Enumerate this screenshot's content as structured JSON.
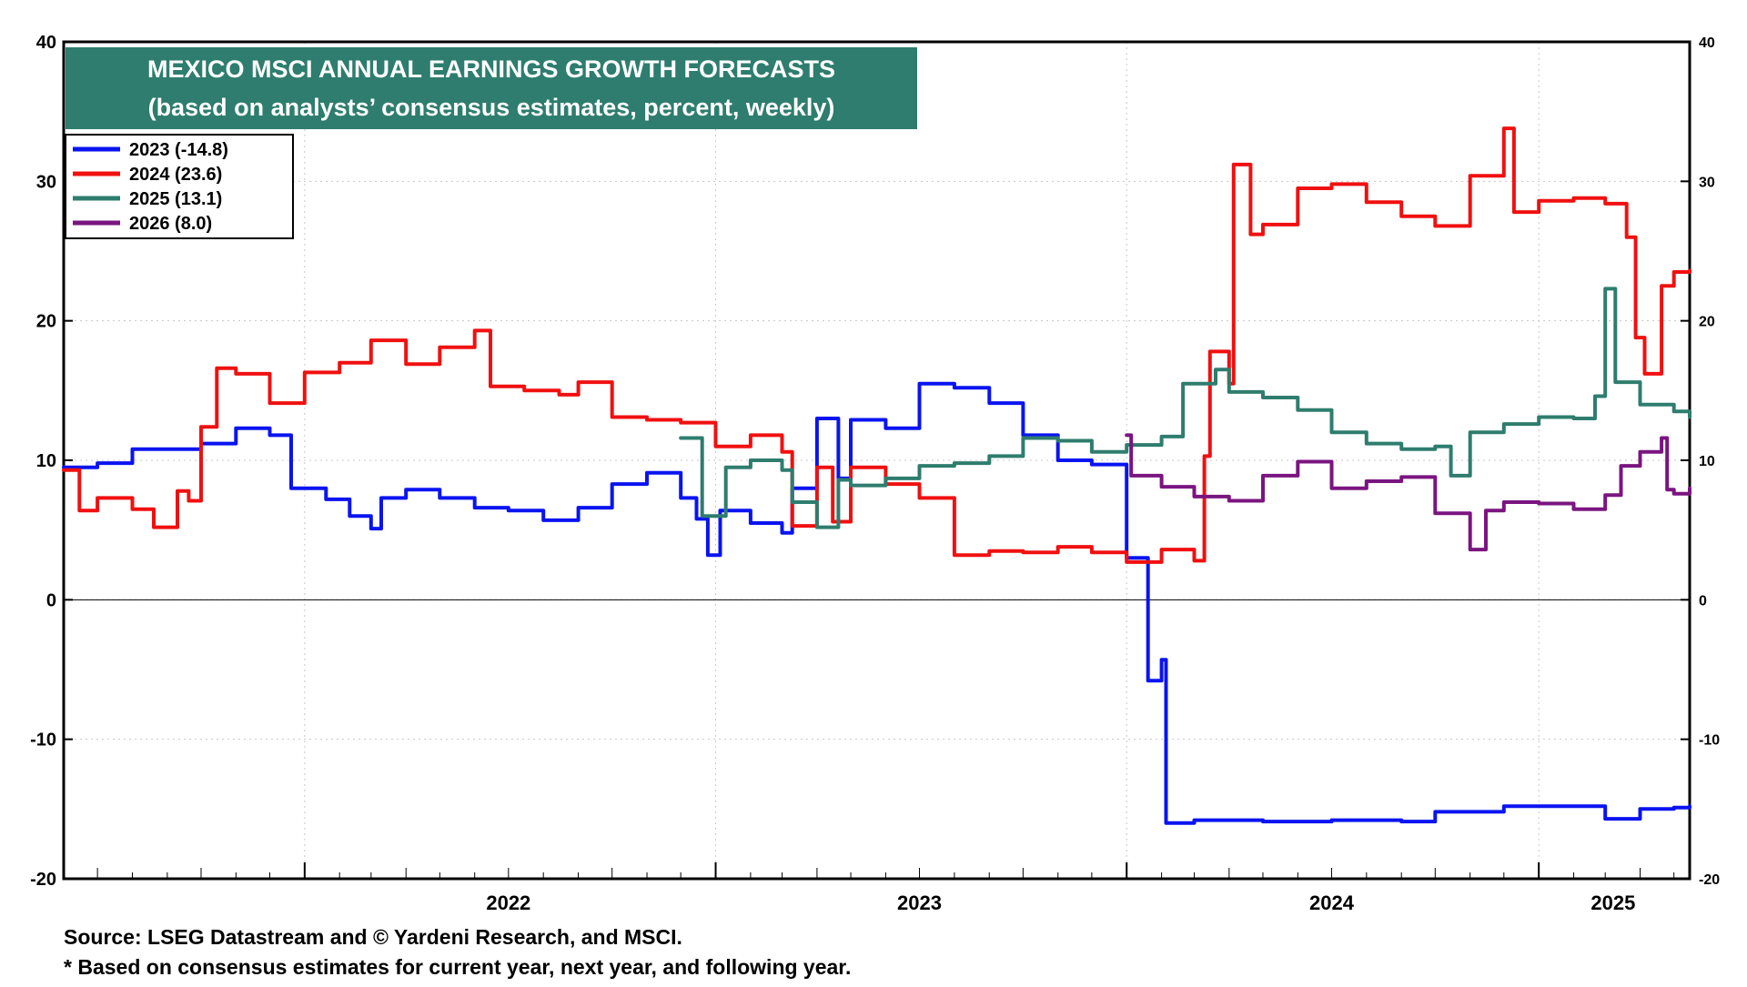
{
  "chart_data": {
    "type": "line",
    "title": "MEXICO MSCI ANNUAL EARNINGS GROWTH FORECASTS",
    "subtitle": "(based on analysts’ consensus estimates, percent, weekly)",
    "title_box_color": "#2e7d6e",
    "ylim": [
      -20,
      40
    ],
    "y_ticks": [
      -20,
      -10,
      0,
      10,
      20,
      30,
      40
    ],
    "y_tick_labels": [
      "-20",
      "-10",
      "0",
      "10",
      "20",
      "30",
      "40"
    ],
    "xlim": [
      "2021-06-01",
      "2025-05-15"
    ],
    "x_tick_labels": [
      "2022",
      "2023",
      "2024",
      "2025"
    ],
    "legend_position": "top-left",
    "grid": true,
    "series": [
      {
        "name": "2023 (-14.8)",
        "color": "#0a14f0",
        "points": [
          [
            "2021-06-01",
            9.5
          ],
          [
            "2021-07-01",
            9.8
          ],
          [
            "2021-08-01",
            10.8
          ],
          [
            "2021-09-01",
            10.8
          ],
          [
            "2021-10-01",
            11.2
          ],
          [
            "2021-11-01",
            12.3
          ],
          [
            "2021-12-01",
            11.8
          ],
          [
            "2021-12-20",
            8.0
          ],
          [
            "2022-01-20",
            7.2
          ],
          [
            "2022-02-10",
            6.0
          ],
          [
            "2022-03-01",
            5.1
          ],
          [
            "2022-03-10",
            7.3
          ],
          [
            "2022-04-01",
            7.9
          ],
          [
            "2022-05-01",
            7.3
          ],
          [
            "2022-06-01",
            6.6
          ],
          [
            "2022-07-01",
            6.4
          ],
          [
            "2022-08-01",
            5.7
          ],
          [
            "2022-09-01",
            6.6
          ],
          [
            "2022-10-01",
            8.3
          ],
          [
            "2022-11-01",
            9.1
          ],
          [
            "2022-12-01",
            7.3
          ],
          [
            "2022-12-15",
            5.8
          ],
          [
            "2022-12-25",
            3.2
          ],
          [
            "2023-01-05",
            6.4
          ],
          [
            "2023-02-01",
            5.5
          ],
          [
            "2023-03-01",
            4.8
          ],
          [
            "2023-03-10",
            8.0
          ],
          [
            "2023-04-01",
            13.0
          ],
          [
            "2023-04-20",
            8.7
          ],
          [
            "2023-05-01",
            12.9
          ],
          [
            "2023-06-01",
            12.3
          ],
          [
            "2023-07-01",
            15.5
          ],
          [
            "2023-08-01",
            15.2
          ],
          [
            "2023-09-01",
            14.1
          ],
          [
            "2023-10-01",
            11.8
          ],
          [
            "2023-11-01",
            10.0
          ],
          [
            "2023-12-01",
            9.7
          ],
          [
            "2024-01-01",
            3.0
          ],
          [
            "2024-01-20",
            -5.8
          ],
          [
            "2024-02-01",
            -4.3
          ],
          [
            "2024-02-05",
            -16.0
          ],
          [
            "2024-03-01",
            -15.8
          ],
          [
            "2024-05-01",
            -15.9
          ],
          [
            "2024-07-01",
            -15.8
          ],
          [
            "2024-09-01",
            -15.9
          ],
          [
            "2024-10-01",
            -15.2
          ],
          [
            "2024-12-01",
            -14.8
          ],
          [
            "2025-03-01",
            -15.7
          ],
          [
            "2025-04-01",
            -15.0
          ],
          [
            "2025-05-01",
            -14.9
          ],
          [
            "2025-05-15",
            -14.8
          ]
        ]
      },
      {
        "name": "2024 (23.6)",
        "color": "#f01010",
        "points": [
          [
            "2021-06-01",
            9.3
          ],
          [
            "2021-06-15",
            6.4
          ],
          [
            "2021-07-01",
            7.3
          ],
          [
            "2021-08-01",
            6.5
          ],
          [
            "2021-08-20",
            5.2
          ],
          [
            "2021-09-10",
            7.8
          ],
          [
            "2021-09-20",
            7.1
          ],
          [
            "2021-10-01",
            12.4
          ],
          [
            "2021-10-15",
            16.6
          ],
          [
            "2021-11-01",
            16.2
          ],
          [
            "2021-12-01",
            14.1
          ],
          [
            "2022-01-01",
            16.3
          ],
          [
            "2022-02-01",
            17.0
          ],
          [
            "2022-03-01",
            18.6
          ],
          [
            "2022-04-01",
            16.9
          ],
          [
            "2022-05-01",
            18.1
          ],
          [
            "2022-06-01",
            19.3
          ],
          [
            "2022-06-15",
            15.3
          ],
          [
            "2022-07-15",
            15.0
          ],
          [
            "2022-08-15",
            14.7
          ],
          [
            "2022-09-01",
            15.6
          ],
          [
            "2022-10-01",
            13.1
          ],
          [
            "2022-11-01",
            12.9
          ],
          [
            "2022-12-01",
            12.7
          ],
          [
            "2023-01-01",
            11.0
          ],
          [
            "2023-02-01",
            11.8
          ],
          [
            "2023-03-01",
            10.6
          ],
          [
            "2023-03-10",
            5.3
          ],
          [
            "2023-04-01",
            9.5
          ],
          [
            "2023-04-15",
            5.6
          ],
          [
            "2023-05-01",
            9.5
          ],
          [
            "2023-06-01",
            8.3
          ],
          [
            "2023-07-01",
            7.3
          ],
          [
            "2023-08-01",
            3.2
          ],
          [
            "2023-09-01",
            3.5
          ],
          [
            "2023-10-01",
            3.4
          ],
          [
            "2023-11-01",
            3.8
          ],
          [
            "2023-12-01",
            3.4
          ],
          [
            "2024-01-01",
            2.7
          ],
          [
            "2024-02-01",
            3.6
          ],
          [
            "2024-03-01",
            2.8
          ],
          [
            "2024-03-10",
            10.3
          ],
          [
            "2024-03-15",
            17.8
          ],
          [
            "2024-04-01",
            15.5
          ],
          [
            "2024-04-05",
            31.2
          ],
          [
            "2024-04-20",
            26.2
          ],
          [
            "2024-05-01",
            26.9
          ],
          [
            "2024-06-01",
            29.5
          ],
          [
            "2024-07-01",
            29.8
          ],
          [
            "2024-08-01",
            28.5
          ],
          [
            "2024-09-01",
            27.5
          ],
          [
            "2024-10-01",
            26.8
          ],
          [
            "2024-11-01",
            30.4
          ],
          [
            "2024-12-01",
            33.8
          ],
          [
            "2024-12-10",
            27.8
          ],
          [
            "2025-01-01",
            28.6
          ],
          [
            "2025-02-01",
            28.8
          ],
          [
            "2025-03-01",
            28.4
          ],
          [
            "2025-03-20",
            26.0
          ],
          [
            "2025-03-28",
            18.8
          ],
          [
            "2025-04-05",
            16.2
          ],
          [
            "2025-04-20",
            22.5
          ],
          [
            "2025-05-01",
            23.5
          ],
          [
            "2025-05-15",
            23.6
          ]
        ]
      },
      {
        "name": "2025 (13.1)",
        "color": "#2e7d6e",
        "points": [
          [
            "2022-12-01",
            11.6
          ],
          [
            "2022-12-20",
            6.0
          ],
          [
            "2023-01-10",
            9.5
          ],
          [
            "2023-02-01",
            10.0
          ],
          [
            "2023-03-01",
            9.3
          ],
          [
            "2023-03-10",
            7.0
          ],
          [
            "2023-04-01",
            5.2
          ],
          [
            "2023-04-20",
            8.6
          ],
          [
            "2023-05-01",
            8.2
          ],
          [
            "2023-06-01",
            8.7
          ],
          [
            "2023-07-01",
            9.6
          ],
          [
            "2023-08-01",
            9.8
          ],
          [
            "2023-09-01",
            10.3
          ],
          [
            "2023-10-01",
            11.6
          ],
          [
            "2023-11-01",
            11.4
          ],
          [
            "2023-12-01",
            10.6
          ],
          [
            "2024-01-01",
            11.1
          ],
          [
            "2024-02-01",
            11.7
          ],
          [
            "2024-02-20",
            15.5
          ],
          [
            "2024-03-20",
            16.5
          ],
          [
            "2024-04-01",
            14.9
          ],
          [
            "2024-05-01",
            14.5
          ],
          [
            "2024-06-01",
            13.6
          ],
          [
            "2024-07-01",
            12.0
          ],
          [
            "2024-08-01",
            11.2
          ],
          [
            "2024-09-01",
            10.8
          ],
          [
            "2024-10-01",
            11.0
          ],
          [
            "2024-10-15",
            8.9
          ],
          [
            "2024-11-01",
            12.0
          ],
          [
            "2024-12-01",
            12.6
          ],
          [
            "2025-01-01",
            13.1
          ],
          [
            "2025-02-01",
            13.0
          ],
          [
            "2025-02-20",
            14.6
          ],
          [
            "2025-03-01",
            22.3
          ],
          [
            "2025-03-10",
            15.6
          ],
          [
            "2025-04-01",
            14.0
          ],
          [
            "2025-05-01",
            13.5
          ],
          [
            "2025-05-15",
            13.1
          ]
        ]
      },
      {
        "name": "2026 (8.0)",
        "color": "#7a1580",
        "points": [
          [
            "2024-01-01",
            11.8
          ],
          [
            "2024-01-05",
            8.9
          ],
          [
            "2024-02-01",
            8.1
          ],
          [
            "2024-03-01",
            7.4
          ],
          [
            "2024-04-01",
            7.1
          ],
          [
            "2024-05-01",
            8.9
          ],
          [
            "2024-06-01",
            9.9
          ],
          [
            "2024-07-01",
            8.0
          ],
          [
            "2024-08-01",
            8.5
          ],
          [
            "2024-09-01",
            8.8
          ],
          [
            "2024-10-01",
            6.2
          ],
          [
            "2024-11-01",
            3.6
          ],
          [
            "2024-11-15",
            6.4
          ],
          [
            "2024-12-01",
            7.0
          ],
          [
            "2025-01-01",
            6.9
          ],
          [
            "2025-02-01",
            6.5
          ],
          [
            "2025-03-01",
            7.5
          ],
          [
            "2025-03-15",
            9.6
          ],
          [
            "2025-04-01",
            10.6
          ],
          [
            "2025-04-20",
            11.6
          ],
          [
            "2025-04-25",
            7.9
          ],
          [
            "2025-05-01",
            7.6
          ],
          [
            "2025-05-15",
            8.0
          ]
        ]
      }
    ]
  },
  "footnotes": {
    "source": "Source: LSEG Datastream and © Yardeni Research, and MSCI.",
    "note": "* Based on consensus estimates for current year, next year, and following year."
  }
}
